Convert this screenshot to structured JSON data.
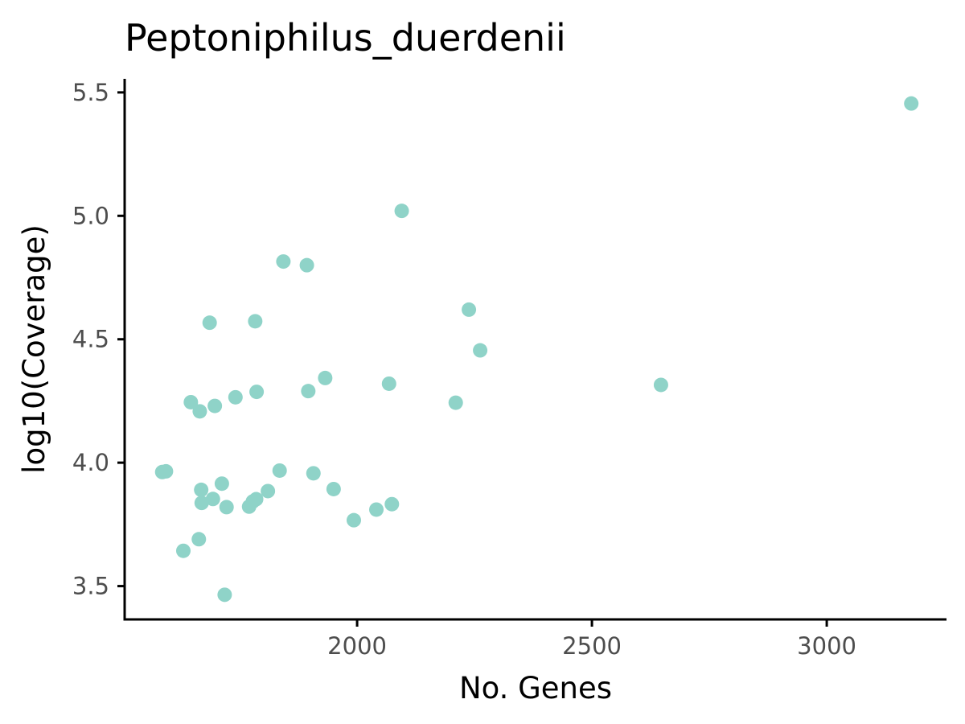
{
  "chart_data": {
    "type": "scatter",
    "title": "Peptoniphilus_duerdenii",
    "xlabel": "No. Genes",
    "ylabel": "log10(Coverage)",
    "xlim": [
      1505,
      3255
    ],
    "ylim": [
      3.365,
      5.555
    ],
    "x_ticks": [
      2000,
      2500,
      3000
    ],
    "x_tick_labels": [
      "2000",
      "2500",
      "3000"
    ],
    "y_ticks": [
      3.5,
      4.0,
      4.5,
      5.0,
      5.5
    ],
    "y_tick_labels": [
      "3.5",
      "4.0",
      "4.5",
      "5.0",
      "5.5"
    ],
    "grid": false,
    "point_color": "#8fd3c8",
    "series": [
      {
        "points": [
          {
            "x": 3180,
            "y": 5.455
          },
          {
            "x": 2095,
            "y": 5.02
          },
          {
            "x": 1843,
            "y": 4.815
          },
          {
            "x": 1893,
            "y": 4.8
          },
          {
            "x": 2238,
            "y": 4.62
          },
          {
            "x": 1686,
            "y": 4.567
          },
          {
            "x": 1783,
            "y": 4.573
          },
          {
            "x": 2262,
            "y": 4.455
          },
          {
            "x": 1932,
            "y": 4.343
          },
          {
            "x": 2068,
            "y": 4.32
          },
          {
            "x": 2647,
            "y": 4.315
          },
          {
            "x": 1896,
            "y": 4.29
          },
          {
            "x": 1786,
            "y": 4.287
          },
          {
            "x": 1741,
            "y": 4.265
          },
          {
            "x": 2210,
            "y": 4.243
          },
          {
            "x": 1646,
            "y": 4.245
          },
          {
            "x": 1697,
            "y": 4.23
          },
          {
            "x": 1665,
            "y": 4.208
          },
          {
            "x": 1835,
            "y": 3.968
          },
          {
            "x": 1907,
            "y": 3.957
          },
          {
            "x": 1585,
            "y": 3.962
          },
          {
            "x": 1593,
            "y": 3.965
          },
          {
            "x": 1712,
            "y": 3.915
          },
          {
            "x": 1950,
            "y": 3.893
          },
          {
            "x": 1668,
            "y": 3.89
          },
          {
            "x": 1810,
            "y": 3.885
          },
          {
            "x": 1693,
            "y": 3.853
          },
          {
            "x": 1785,
            "y": 3.852
          },
          {
            "x": 1778,
            "y": 3.843
          },
          {
            "x": 1669,
            "y": 3.837
          },
          {
            "x": 2074,
            "y": 3.832
          },
          {
            "x": 1770,
            "y": 3.822
          },
          {
            "x": 1722,
            "y": 3.82
          },
          {
            "x": 2041,
            "y": 3.81
          },
          {
            "x": 1993,
            "y": 3.767
          },
          {
            "x": 1663,
            "y": 3.69
          },
          {
            "x": 1630,
            "y": 3.643
          },
          {
            "x": 1718,
            "y": 3.465
          }
        ]
      }
    ]
  }
}
